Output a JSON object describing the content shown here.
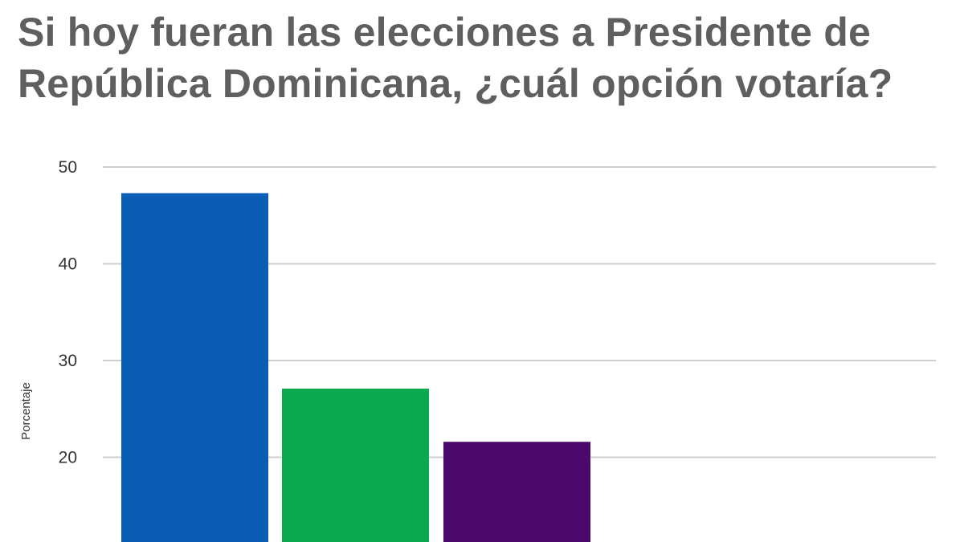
{
  "chart_data": {
    "type": "bar",
    "title": "Si hoy fueran las elecciones a Presidente de República Dominicana, ¿cuál opción votaría?",
    "xlabel": "",
    "ylabel": "Porcentaje",
    "ylim": [
      10,
      50
    ],
    "yticks": [
      50,
      40,
      30,
      20
    ],
    "grid": true,
    "series": [
      {
        "values": [
          47.3,
          27.1,
          21.6
        ],
        "colors": [
          "#0b5cb5",
          "#0aa84f",
          "#4b0a6b"
        ]
      }
    ]
  }
}
